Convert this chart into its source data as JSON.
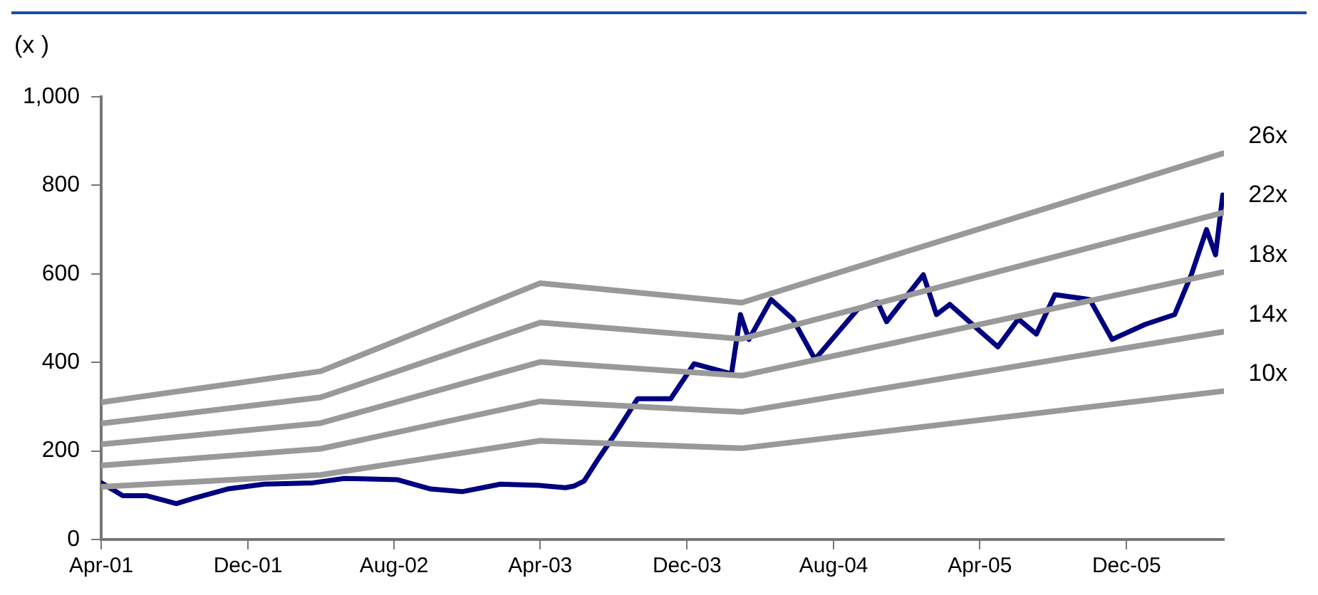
{
  "chart_data": {
    "type": "line",
    "ylabel": "(x )",
    "xlim": [
      "2001-04-01",
      "2006-05-12"
    ],
    "xticks": [
      {
        "value": "2001-04-01",
        "label": "Apr-01"
      },
      {
        "value": "2001-12-01",
        "label": "Dec-01"
      },
      {
        "value": "2002-08-01",
        "label": "Aug-02"
      },
      {
        "value": "2003-04-01",
        "label": "Apr-03"
      },
      {
        "value": "2003-12-01",
        "label": "Dec-03"
      },
      {
        "value": "2004-08-01",
        "label": "Aug-04"
      },
      {
        "value": "2005-04-01",
        "label": "Apr-05"
      },
      {
        "value": "2005-12-01",
        "label": "Dec-05"
      }
    ],
    "ylim": [
      0,
      1000
    ],
    "yticks": [
      0,
      200,
      400,
      600,
      800,
      {
        "value": 1000,
        "label": "1,000"
      }
    ],
    "grid": false,
    "legend": false,
    "marker": "none",
    "line_style": "solid",
    "series": [
      {
        "name": "26x",
        "color": "#999999",
        "x": [
          "2001-04-01",
          "2002-04-01",
          "2003-04-01",
          "2004-03-01",
          "2006-05-10"
        ],
        "values": [
          310,
          380,
          579,
          535,
          872
        ]
      },
      {
        "name": "22x",
        "color": "#999999",
        "x": [
          "2001-04-01",
          "2002-04-01",
          "2003-04-01",
          "2004-03-01",
          "2006-05-10"
        ],
        "values": [
          262,
          321,
          490,
          453,
          738
        ]
      },
      {
        "name": "18x",
        "color": "#999999",
        "x": [
          "2001-04-01",
          "2002-04-01",
          "2003-04-01",
          "2004-03-01",
          "2006-05-10"
        ],
        "values": [
          215,
          263,
          401,
          370,
          604
        ]
      },
      {
        "name": "14x",
        "color": "#999999",
        "x": [
          "2001-04-01",
          "2002-04-01",
          "2003-04-01",
          "2004-03-01",
          "2006-05-10"
        ],
        "values": [
          167,
          205,
          312,
          288,
          469
        ]
      },
      {
        "name": "10x",
        "color": "#999999",
        "x": [
          "2001-04-01",
          "2002-04-01",
          "2003-04-01",
          "2004-03-01",
          "2006-05-10"
        ],
        "values": [
          119,
          146,
          223,
          206,
          335
        ]
      },
      {
        "color": "#000080",
        "x": [
          "2001-04-01",
          "2001-05-07",
          "2001-06-15",
          "2001-08-04",
          "2001-09-04",
          "2001-10-28",
          "2001-12-28",
          "2002-03-19",
          "2002-05-10",
          "2002-08-07",
          "2002-10-01",
          "2002-11-22",
          "2003-01-25",
          "2003-04-01",
          "2003-05-13",
          "2003-05-28",
          "2003-06-13",
          "2003-07-07",
          "2003-08-01",
          "2003-09-10",
          "2003-11-04",
          "2003-12-13",
          "2004-02-13",
          "2004-02-28",
          "2004-03-13",
          "2004-04-19",
          "2004-05-25",
          "2004-07-01",
          "2004-09-10",
          "2004-10-13",
          "2004-10-28",
          "2004-12-28",
          "2005-01-19",
          "2005-02-10",
          "2005-05-01",
          "2005-06-04",
          "2005-07-04",
          "2005-08-04",
          "2005-10-01",
          "2005-11-07",
          "2006-01-01",
          "2006-02-19",
          "2006-03-19",
          "2006-04-13",
          "2006-04-28",
          "2006-05-10"
        ],
        "values": [
          128,
          99,
          99,
          81,
          94,
          114,
          125,
          128,
          138,
          135,
          114,
          108,
          125,
          122,
          117,
          121,
          132,
          183,
          233,
          318,
          318,
          397,
          374,
          508,
          452,
          542,
          498,
          407,
          520,
          536,
          492,
          598,
          508,
          531,
          435,
          498,
          464,
          553,
          542,
          452,
          486,
          508,
          599,
          700,
          643,
          778
        ]
      }
    ]
  }
}
